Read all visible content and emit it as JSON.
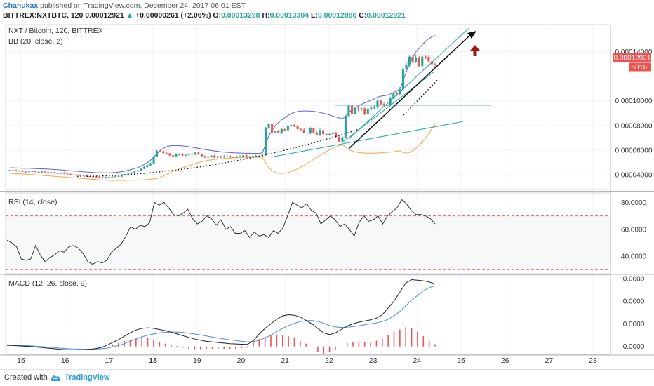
{
  "header": {
    "author": "Chanukax",
    "published": "published on TradingView.com, December 24, 2017 06:01 EST",
    "symbol": "BITTREX:NXTBTC, 120",
    "price": "0.00012921",
    "change_arrow": "▲",
    "change": "+0.00000261 (+2.06%)",
    "o_label": "O:",
    "o_value": "0.00013298",
    "h_label": "H:",
    "h_value": "0.00013304",
    "l_label": "L:",
    "l_value": "0.00012880",
    "c_label": "C:",
    "c_value": "0.00012921"
  },
  "footer": {
    "created_with": "Created with",
    "brand": "TradingView"
  },
  "colors": {
    "up": "#26a69a",
    "down": "#ef5350",
    "bb_upper": "#5a5ed6",
    "bb_lower": "#f5a742",
    "rsi": "#333333",
    "macd": "#222222",
    "signal": "#4a90d9",
    "hist": "#ef5350",
    "price_line": "#ef5350",
    "arrow_up": "#a01515"
  },
  "chart_data": [
    {
      "type": "candlestick",
      "title": "NXT / Bitcoin, 120, BITTREX",
      "indicator": "BB (20, close, 2)",
      "y_ticks": [
        "0.00014000",
        "0.00012921",
        "0.00010000",
        "0.00008000",
        "0.00006000",
        "0.00004000"
      ],
      "last_price_label": "0.00012921",
      "countdown_label": "58:32",
      "ylim": [
        2.8e-05,
        0.000162
      ],
      "closes": [
        4.37e-05,
        4.36e-05,
        4.31e-05,
        4.32e-05,
        4.25e-05,
        4.22e-05,
        4.27e-05,
        4.3e-05,
        4.22e-05,
        4.18e-05,
        4.26e-05,
        4.21e-05,
        4.16e-05,
        4.19e-05,
        4.13e-05,
        4.09e-05,
        4.13e-05,
        4.1e-05,
        4.04e-05,
        4.01e-05,
        3.97e-05,
        3.96e-05,
        3.94e-05,
        3.96e-05,
        3.88e-05,
        3.86e-05,
        3.84e-05,
        3.82e-05,
        3.77e-05,
        3.72e-05,
        3.81e-05,
        3.78e-05,
        3.84e-05,
        3.9e-05,
        3.85e-05,
        3.95e-05,
        4.01e-05,
        4.09e-05,
        4.18e-05,
        4.26e-05,
        4.35e-05,
        4.49e-05,
        4.62e-05,
        4.77e-05,
        4.92e-05,
        5.49e-05,
        5.93e-05,
        5.91e-05,
        5.75e-05,
        5.73e-05,
        5.58e-05,
        5.49e-05,
        5.65e-05,
        5.68e-05,
        5.56e-05,
        5.61e-05,
        5.69e-05,
        5.64e-05,
        5.8e-05,
        5.67e-05,
        5.51e-05,
        5.42e-05,
        5.45e-05,
        5.55e-05,
        5.4e-05,
        5.5e-05,
        5.42e-05,
        5.49e-05,
        5.49e-05,
        5.44e-05,
        5.42e-05,
        5.46e-05,
        5.49e-05,
        5.58e-05,
        5.45e-05,
        5.49e-05,
        5.52e-05,
        5.53e-05,
        5.53e-05,
        5.57e-05,
        7.82e-05,
        8.1e-05,
        7.44e-05,
        7.53e-05,
        7.41e-05,
        7.71e-05,
        7.61e-05,
        7.95e-05,
        8.03e-05,
        7.99e-05,
        7.71e-05,
        7.66e-05,
        7.41e-05,
        7.37e-05,
        7.76e-05,
        7.42e-05,
        7.23e-05,
        7.62e-05,
        7.3e-05,
        7.25e-05,
        7.31e-05,
        7.36e-05,
        7.08e-05,
        6.7e-05,
        7.04e-05,
        8.76e-05,
        9.6e-05,
        8.94e-05,
        9.4e-05,
        9.3e-05,
        9.39e-05,
        8.91e-05,
        9.32e-05,
        9.46e-05,
        9.47e-05,
        0.0001001,
        9.74e-05,
        9.65e-05,
        9.64e-05,
        0.000102,
        0.0001065,
        0.0001055,
        0.0001093,
        0.0001262,
        0.0001296,
        0.0001359,
        0.0001318,
        0.0001353,
        0.0001282,
        0.000136,
        0.0001357,
        0.0001322,
        0.0001298,
        0.0001292
      ],
      "bb_upper": [
        4.57e-05,
        4.56e-05,
        4.55e-05,
        4.54e-05,
        4.53e-05,
        4.52e-05,
        4.52e-05,
        4.51e-05,
        4.5e-05,
        4.49e-05,
        4.48e-05,
        4.47e-05,
        4.46e-05,
        4.44e-05,
        4.43e-05,
        4.41e-05,
        4.39e-05,
        4.37e-05,
        4.34e-05,
        4.32e-05,
        4.3e-05,
        4.28e-05,
        4.26e-05,
        4.24e-05,
        4.22e-05,
        4.2e-05,
        4.18e-05,
        4.17e-05,
        4.16e-05,
        4.15e-05,
        4.15e-05,
        4.15e-05,
        4.16e-05,
        4.18e-05,
        4.21e-05,
        4.25e-05,
        4.3e-05,
        4.36e-05,
        4.42e-05,
        4.5e-05,
        4.58e-05,
        4.69e-05,
        4.82e-05,
        4.98e-05,
        5.18e-05,
        5.42e-05,
        5.7e-05,
        5.96e-05,
        6.15e-05,
        6.27e-05,
        6.34e-05,
        6.37e-05,
        6.37e-05,
        6.36e-05,
        6.34e-05,
        6.31e-05,
        6.27e-05,
        6.23e-05,
        6.19e-05,
        6.14e-05,
        6.1e-05,
        6.05e-05,
        6.01e-05,
        5.97e-05,
        5.93e-05,
        5.9e-05,
        5.87e-05,
        5.84e-05,
        5.82e-05,
        5.8e-05,
        5.78e-05,
        5.77e-05,
        5.76e-05,
        5.75e-05,
        5.74e-05,
        5.74e-05,
        5.73e-05,
        5.73e-05,
        5.74e-05,
        5.77e-05,
        6.45e-05,
        7.15e-05,
        7.62e-05,
        7.96e-05,
        8.22e-05,
        8.45e-05,
        8.64e-05,
        8.82e-05,
        8.96e-05,
        9.06e-05,
        9.13e-05,
        9.17e-05,
        9.18e-05,
        9.18e-05,
        9.17e-05,
        9.14e-05,
        9.11e-05,
        9.06e-05,
        9e-05,
        8.93e-05,
        8.85e-05,
        8.77e-05,
        8.69e-05,
        8.61e-05,
        8.53e-05,
        8.75e-05,
        9.08e-05,
        9.25e-05,
        9.42e-05,
        9.58e-05,
        9.72e-05,
        9.84e-05,
        9.95e-05,
        0.0001006,
        0.0001017,
        0.000103,
        0.0001038,
        0.0001042,
        0.0001045,
        0.0001055,
        0.0001068,
        0.000108,
        0.0001095,
        0.0001163,
        0.0001235,
        0.0001305,
        0.0001355,
        0.0001398,
        0.0001427,
        0.0001458,
        0.0001484,
        0.0001505,
        0.000152,
        0.0001532
      ],
      "bb_lower": [
        4.11e-05,
        4.1e-05,
        4.09e-05,
        4.08e-05,
        4.06e-05,
        4.04e-05,
        4.03e-05,
        4.01e-05,
        3.99e-05,
        3.97e-05,
        3.95e-05,
        3.93e-05,
        3.91e-05,
        3.89e-05,
        3.87e-05,
        3.85e-05,
        3.83e-05,
        3.81e-05,
        3.79e-05,
        3.77e-05,
        3.75e-05,
        3.73e-05,
        3.71e-05,
        3.69e-05,
        3.67e-05,
        3.65e-05,
        3.63e-05,
        3.61e-05,
        3.59e-05,
        3.57e-05,
        3.56e-05,
        3.55e-05,
        3.54e-05,
        3.54e-05,
        3.54e-05,
        3.54e-05,
        3.54e-05,
        3.55e-05,
        3.55e-05,
        3.56e-05,
        3.57e-05,
        3.58e-05,
        3.59e-05,
        3.61e-05,
        3.63e-05,
        3.66e-05,
        3.7e-05,
        3.78e-05,
        3.89e-05,
        4.01e-05,
        4.14e-05,
        4.26e-05,
        4.37e-05,
        4.47e-05,
        4.56e-05,
        4.65e-05,
        4.74e-05,
        4.83e-05,
        4.91e-05,
        4.99e-05,
        5.06e-05,
        5.12e-05,
        5.17e-05,
        5.21e-05,
        5.24e-05,
        5.27e-05,
        5.3e-05,
        5.32e-05,
        5.34e-05,
        5.36e-05,
        5.37e-05,
        5.38e-05,
        5.39e-05,
        5.4e-05,
        5.41e-05,
        5.41e-05,
        5.42e-05,
        5.42e-05,
        5.42e-05,
        5.41e-05,
        4.99e-05,
        4.57e-05,
        4.33e-05,
        4.2e-05,
        4.13e-05,
        4.11e-05,
        4.13e-05,
        4.18e-05,
        4.26e-05,
        4.36e-05,
        4.48e-05,
        4.62e-05,
        4.77e-05,
        4.92e-05,
        5.08e-05,
        5.24e-05,
        5.4e-05,
        5.56e-05,
        5.72e-05,
        5.88e-05,
        6.02e-05,
        6.15e-05,
        6.26e-05,
        6.36e-05,
        6.43e-05,
        6.26e-05,
        6.02e-05,
        5.92e-05,
        5.85e-05,
        5.81e-05,
        5.78e-05,
        5.76e-05,
        5.75e-05,
        5.75e-05,
        5.76e-05,
        5.77e-05,
        5.78e-05,
        5.8e-05,
        5.82e-05,
        5.84e-05,
        5.87e-05,
        5.9e-05,
        5.94e-05,
        5.8e-05,
        5.76e-05,
        5.81e-05,
        5.95e-05,
        6.14e-05,
        6.38e-05,
        6.65e-05,
        6.97e-05,
        7.33e-05,
        7.72e-05,
        8.12e-05
      ]
    },
    {
      "type": "line",
      "title": "RSI (14, close)",
      "y_ticks": [
        "80.0000",
        "60.0000",
        "40.0000"
      ],
      "levels": [
        70,
        30
      ],
      "ylim": [
        27,
        87
      ],
      "values": [
        52,
        50,
        47,
        38,
        37,
        38,
        48,
        41,
        36,
        39,
        41,
        44,
        43,
        47,
        48,
        46,
        42,
        36,
        34,
        36,
        35,
        37,
        43,
        46,
        49,
        55,
        62,
        60,
        63,
        62,
        65,
        80,
        78,
        80,
        76,
        71,
        70,
        72,
        75,
        68,
        64,
        66,
        70,
        68,
        63,
        67,
        60,
        62,
        57,
        57,
        59,
        54,
        58,
        55,
        56,
        54,
        59,
        57,
        61,
        70,
        80,
        78,
        76,
        79,
        74,
        72,
        64,
        67,
        70,
        67,
        62,
        64,
        60,
        55,
        65,
        70,
        66,
        67,
        70,
        64,
        70,
        73,
        76,
        82,
        79,
        74,
        71,
        71,
        70,
        68,
        64
      ]
    },
    {
      "type": "line",
      "title": "MACD (12, 26, close, 9)",
      "y_ticks": [
        "0.0000",
        "0.0000",
        "0.0000",
        "0.0000"
      ],
      "ylim": [
        -0.7,
        6.3
      ],
      "macd": [
        0.1,
        0.08,
        0.05,
        0.02,
        0,
        -0.05,
        -0.1,
        -0.15,
        -0.2,
        -0.25,
        -0.28,
        -0.3,
        -0.3,
        -0.28,
        -0.25,
        -0.2,
        -0.1,
        0.1,
        0.35,
        0.6,
        0.9,
        1.2,
        1.45,
        1.6,
        1.65,
        1.6,
        1.5,
        1.4,
        1.25,
        1.1,
        0.95,
        0.8,
        0.65,
        0.55,
        0.45,
        0.4,
        0.35,
        0.3,
        0.25,
        0.22,
        0.2,
        0.18,
        0.5,
        1.1,
        1.6,
        2,
        2.4,
        2.7,
        2.8,
        2.75,
        2.6,
        2.3,
        2,
        1.6,
        1.2,
        1.05,
        1.2,
        1.5,
        1.8,
        2,
        2.15,
        2.25,
        2.35,
        2.5,
        2.8,
        3.4,
        4,
        4.8,
        5.6,
        5.9,
        5.85,
        5.8,
        5.7,
        5.5
      ],
      "signal": [
        0.15,
        0.13,
        0.1,
        0.08,
        0.05,
        0.02,
        -0.02,
        -0.06,
        -0.1,
        -0.14,
        -0.18,
        -0.21,
        -0.23,
        -0.24,
        -0.24,
        -0.23,
        -0.2,
        -0.15,
        -0.05,
        0.08,
        0.25,
        0.45,
        0.65,
        0.85,
        1,
        1.1,
        1.2,
        1.25,
        1.28,
        1.27,
        1.24,
        1.18,
        1.1,
        1.02,
        0.92,
        0.83,
        0.75,
        0.67,
        0.59,
        0.52,
        0.45,
        0.4,
        0.42,
        0.55,
        0.75,
        1,
        1.3,
        1.6,
        1.85,
        2.05,
        2.2,
        2.28,
        2.3,
        2.22,
        2.05,
        1.85,
        1.72,
        1.68,
        1.7,
        1.75,
        1.83,
        1.92,
        2,
        2.08,
        2.2,
        2.4,
        2.7,
        3.1,
        3.6,
        4.1,
        4.5,
        4.9,
        5.2,
        5.35
      ],
      "hist": [
        0,
        0,
        0,
        0,
        0,
        0,
        0,
        0,
        0,
        0,
        0,
        0,
        0,
        0,
        0,
        0,
        0,
        0,
        0.2,
        0.3,
        0.5,
        0.6,
        0.7,
        0.8,
        0.75,
        0.6,
        0.4,
        0.25,
        0.15,
        0.05,
        -0.1,
        -0.2,
        -0.25,
        -0.25,
        -0.2,
        -0.2,
        -0.2,
        -0.2,
        -0.2,
        -0.2,
        -0.15,
        -0.1,
        0.4,
        0.65,
        0.85,
        1,
        1.05,
        1,
        0.9,
        0.75,
        0.5,
        0.25,
        -0.1,
        -0.45,
        -0.7,
        -0.5,
        -0.3,
        0,
        0.3,
        0.4,
        0.45,
        0.4,
        0.35,
        0.5,
        0.7,
        1,
        1.3,
        1.5,
        1.7,
        1.6,
        1.3,
        0.9,
        0.5,
        0.2
      ]
    }
  ],
  "x_axis": {
    "labels": [
      "15",
      "16",
      "17",
      "18",
      "19",
      "20",
      "21",
      "22",
      "23",
      "24",
      "25",
      "26",
      "27",
      "28"
    ],
    "bold": [
      "18"
    ]
  }
}
